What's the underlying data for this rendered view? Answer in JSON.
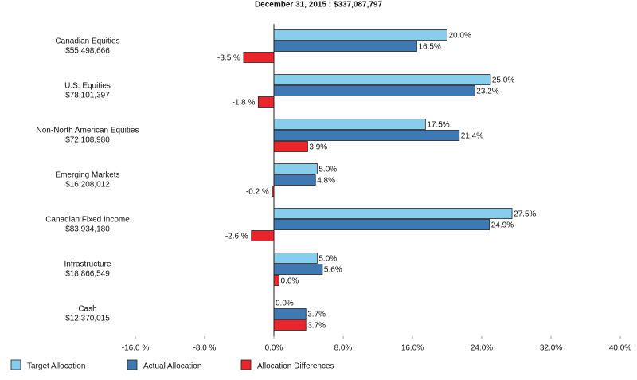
{
  "chart_data": {
    "type": "bar",
    "orientation": "horizontal",
    "title": "December 31, 2015 : $337,087,797",
    "categories": [
      "Canadian Equities",
      "U.S. Equities",
      "Non-North American Equities",
      "Emerging Markets",
      "Canadian Fixed Income",
      "Infrastructure",
      "Cash"
    ],
    "category_amounts": [
      "$55,498,666",
      "$78,101,397",
      "$72,108,980",
      "$16,208,012",
      "$83,934,180",
      "$18,866,549",
      "$12,370,015"
    ],
    "series": [
      {
        "name": "Target Allocation",
        "color": "#87cdee",
        "values": [
          20.0,
          25.0,
          17.5,
          5.0,
          27.5,
          5.0,
          0.0
        ],
        "value_labels": [
          "20.0%",
          "25.0%",
          "17.5%",
          "5.0%",
          "27.5%",
          "5.0%",
          "0.0%"
        ]
      },
      {
        "name": "Actual Allocation",
        "color": "#3f79b3",
        "values": [
          16.5,
          23.2,
          21.4,
          4.8,
          24.9,
          5.6,
          3.7
        ],
        "value_labels": [
          "16.5%",
          "23.2%",
          "21.4%",
          "4.8%",
          "24.9%",
          "5.6%",
          "3.7%"
        ]
      },
      {
        "name": "Allocation Differences",
        "color": "#e8262b",
        "values": [
          -3.5,
          -1.8,
          3.9,
          -0.2,
          -2.6,
          0.6,
          3.7
        ],
        "value_labels": [
          "-3.5 %",
          "-1.8 %",
          "3.9%",
          "-0.2 %",
          "-2.6 %",
          "0.6%",
          "3.7%"
        ]
      }
    ],
    "xlim": [
      -16,
      40
    ],
    "xticks": [
      {
        "value": -16,
        "label": "-16.0 %"
      },
      {
        "value": -8,
        "label": "-8.0 %"
      },
      {
        "value": 0,
        "label": "0.0%"
      },
      {
        "value": 8,
        "label": "8.0%"
      },
      {
        "value": 16,
        "label": "16.0%"
      },
      {
        "value": 24,
        "label": "24.0%"
      },
      {
        "value": 32,
        "label": "32.0%"
      },
      {
        "value": 40,
        "label": "40.0%"
      }
    ],
    "grid": false
  }
}
